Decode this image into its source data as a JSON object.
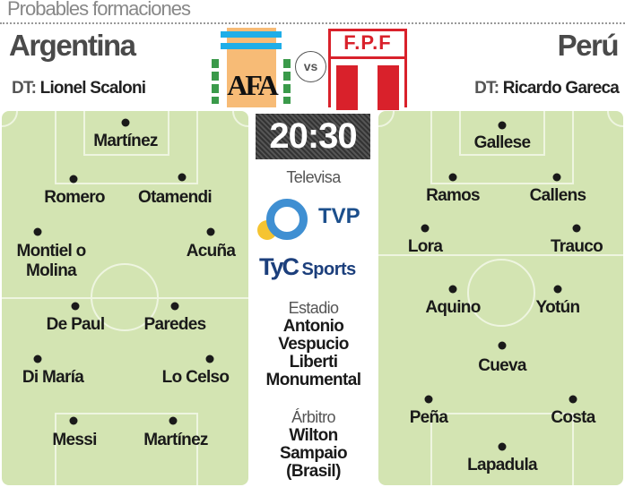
{
  "header": {
    "title": "Probables formaciones",
    "vs": "vs"
  },
  "home": {
    "name": "Argentina",
    "dt_label": "DT:",
    "coach": "Lionel Scaloni",
    "crest_text": "AFA",
    "players": [
      {
        "name": "Martínez",
        "d": [
          140,
          137
        ],
        "l": [
          140,
          147
        ]
      },
      {
        "name": "Romero",
        "d": [
          82,
          200
        ],
        "l": [
          83,
          210
        ]
      },
      {
        "name": "Otamendi",
        "d": [
          203,
          198
        ],
        "l": [
          195,
          210
        ]
      },
      {
        "name": "Montiel o\nMolina",
        "d": [
          42,
          259
        ],
        "l": [
          57,
          270
        ]
      },
      {
        "name": "Acuña",
        "d": [
          235,
          259
        ],
        "l": [
          235,
          270
        ]
      },
      {
        "name": "De Paul",
        "d": [
          84,
          342
        ],
        "l": [
          84,
          352
        ]
      },
      {
        "name": "Paredes",
        "d": [
          195,
          342
        ],
        "l": [
          195,
          352
        ]
      },
      {
        "name": "Di María",
        "d": [
          42,
          401
        ],
        "l": [
          59,
          411
        ]
      },
      {
        "name": "Lo Celso",
        "d": [
          234,
          401
        ],
        "l": [
          218,
          411
        ]
      },
      {
        "name": "Messi",
        "d": [
          82,
          470
        ],
        "l": [
          83,
          481
        ]
      },
      {
        "name": "Martínez",
        "d": [
          193,
          470
        ],
        "l": [
          196,
          481
        ]
      }
    ]
  },
  "away": {
    "name": "Perú",
    "dt_label": "DT:",
    "coach": "Ricardo Gareca",
    "crest_text": "F.P.F",
    "players": [
      {
        "name": "Gallese",
        "d": [
          560,
          140
        ],
        "l": [
          560,
          149
        ]
      },
      {
        "name": "Ramos",
        "d": [
          505,
          198
        ],
        "l": [
          505,
          208
        ]
      },
      {
        "name": "Callens",
        "d": [
          621,
          198
        ],
        "l": [
          622,
          208
        ]
      },
      {
        "name": "Lora",
        "d": [
          474,
          255
        ],
        "l": [
          474,
          265
        ]
      },
      {
        "name": "Trauco",
        "d": [
          643,
          255
        ],
        "l": [
          643,
          265
        ]
      },
      {
        "name": "Aquino",
        "d": [
          505,
          323
        ],
        "l": [
          505,
          333
        ]
      },
      {
        "name": "Yotún",
        "d": [
          622,
          323
        ],
        "l": [
          622,
          333
        ]
      },
      {
        "name": "Cueva",
        "d": [
          560,
          386
        ],
        "l": [
          560,
          398
        ]
      },
      {
        "name": "Peña",
        "d": [
          478,
          446
        ],
        "l": [
          478,
          456
        ]
      },
      {
        "name": "Costa",
        "d": [
          639,
          446
        ],
        "l": [
          639,
          456
        ]
      },
      {
        "name": "Lapadula",
        "d": [
          560,
          499
        ],
        "l": [
          560,
          509
        ]
      }
    ]
  },
  "match": {
    "time": "20:30",
    "broadcaster_label": "Televisa",
    "tv1": "TVP",
    "tv2_a": "TyC",
    "tv2_b": "Sports",
    "stadium_label": "Estadio",
    "stadium": "Antonio\nVespucio\nLiberti\nMonumental",
    "referee_label": "Árbitro",
    "referee": "Wilton\nSampaio\n(Brasil)"
  },
  "colors": {
    "pitch": "#d3e4b2",
    "argentina_blue": "#1eaee8",
    "afa_orange": "#f7bb76",
    "peru_red": "#d9212b",
    "tvp_blue": "#3f8fd2",
    "tvp_yellow": "#f5c431",
    "tyc_navy": "#1c3f7c"
  }
}
